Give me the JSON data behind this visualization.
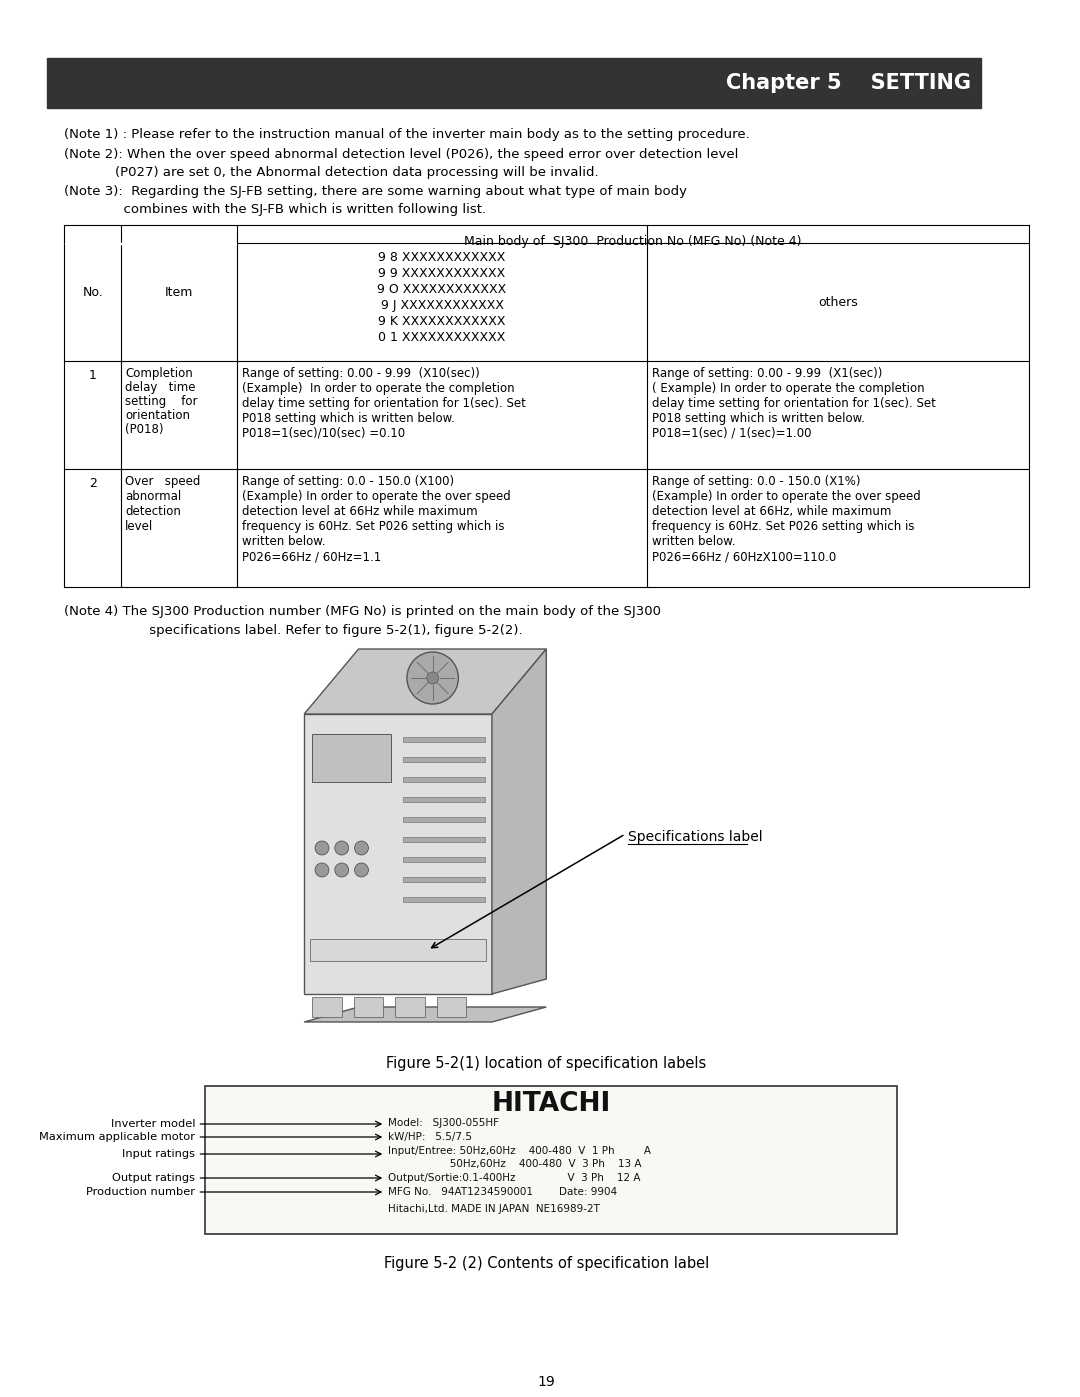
{
  "page_bg": "#ffffff",
  "header_bg": "#333333",
  "header_text": "Chapter 5    SETTING",
  "header_text_color": "#ffffff",
  "note1": "(Note 1) : Please refer to the instruction manual of the inverter main body as to the setting procedure.",
  "note2_line1": "(Note 2): When the over speed abnormal detection level (P026), the speed error over detection level",
  "note2_line2": "            (P027) are set 0, the Abnormal detection data processing will be invalid.",
  "note3_line1": "(Note 3):  Regarding the SJ-FB setting, there are some warning about what type of main body",
  "note3_line2": "              combines with the SJ-FB which is written following list.",
  "table_header_col1": "No.",
  "table_header_col2": "Item",
  "table_header_col3": "Main body of  SJ300  Production No (MFG No) (Note 4)",
  "table_sub_col3a": "9 8 XXXXXXXXXXXX\n9 9 XXXXXXXXXXXX\n9 O XXXXXXXXXXXX\n9 J XXXXXXXXXXXX\n9 K XXXXXXXXXXXX\n0 1 XXXXXXXXXXXX",
  "table_sub_col3b": "others",
  "row1_no": "1",
  "row1_item": "Completion\ndelay   time\nsetting    for\norientation\n(P018)",
  "row1_col3a": "Range of setting: 0.00 - 9.99  (X10(sec))\n(Example)  In order to operate the completion\ndelay time setting for orientation for 1(sec). Set\nP018 setting which is written below.\nP018=1(sec)/10(sec) =0.10",
  "row1_col3b": "Range of setting: 0.00 - 9.99  (X1(sec))\n( Example) In order to operate the completion\ndelay time setting for orientation for 1(sec). Set\nP018 setting which is written below.\nP018=1(sec) / 1(sec)=1.00",
  "row2_no": "2",
  "row2_item": "Over   speed\nabnormal\ndetection\nlevel",
  "row2_col3a": "Range of setting: 0.0 - 150.0 (X100)\n(Example) In order to operate the over speed\ndetection level at 66Hz while maximum\nfrequency is 60Hz. Set P026 setting which is\nwritten below.\nP026=66Hz / 60Hz=1.1",
  "row2_col3b": "Range of setting: 0.0 - 150.0 (X1%)\n(Example) In order to operate the over speed\ndetection level at 66Hz, while maximum\nfrequency is 60Hz. Set P026 setting which is\nwritten below.\nP026=66Hz / 60HzX100=110.0",
  "note4_line1": "(Note 4) The SJ300 Production number (MFG No) is printed on the main body of the SJ300",
  "note4_line2": "             specifications label. Refer to figure 5-2(1), figure 5-2(2).",
  "fig1_caption": "Figure 5-2(1) location of specification labels",
  "fig2_caption": "Figure 5-2 (2) Contents of specification label",
  "spec_label_text": "Specifications label",
  "label_hitachi": "HITACHI",
  "label_model_label": "Inverter model",
  "label_motor_label": "Maximum applicable motor",
  "label_input_label": "Input ratings",
  "label_output_label": "Output ratings",
  "label_prod_label": "Production number",
  "label_model_val": "Model:   SJ300-055HF",
  "label_kw": "kW/HP:   5.5/7.5",
  "label_input1": "Input/Entree: 50Hz,60Hz    400-480  V  1 Ph         A",
  "label_input2": "                   50Hz,60Hz    400-480  V  3 Ph    13 A",
  "label_output": "Output/Sortie:0.1-400Hz                V  3 Ph    12 A",
  "label_mfg": "MFG No.   94AT1234590001        Date: 9904",
  "label_hitachi2": "Hitachi,Ltd. MADE IN JAPAN  NE16989-2T",
  "page_num": "19"
}
